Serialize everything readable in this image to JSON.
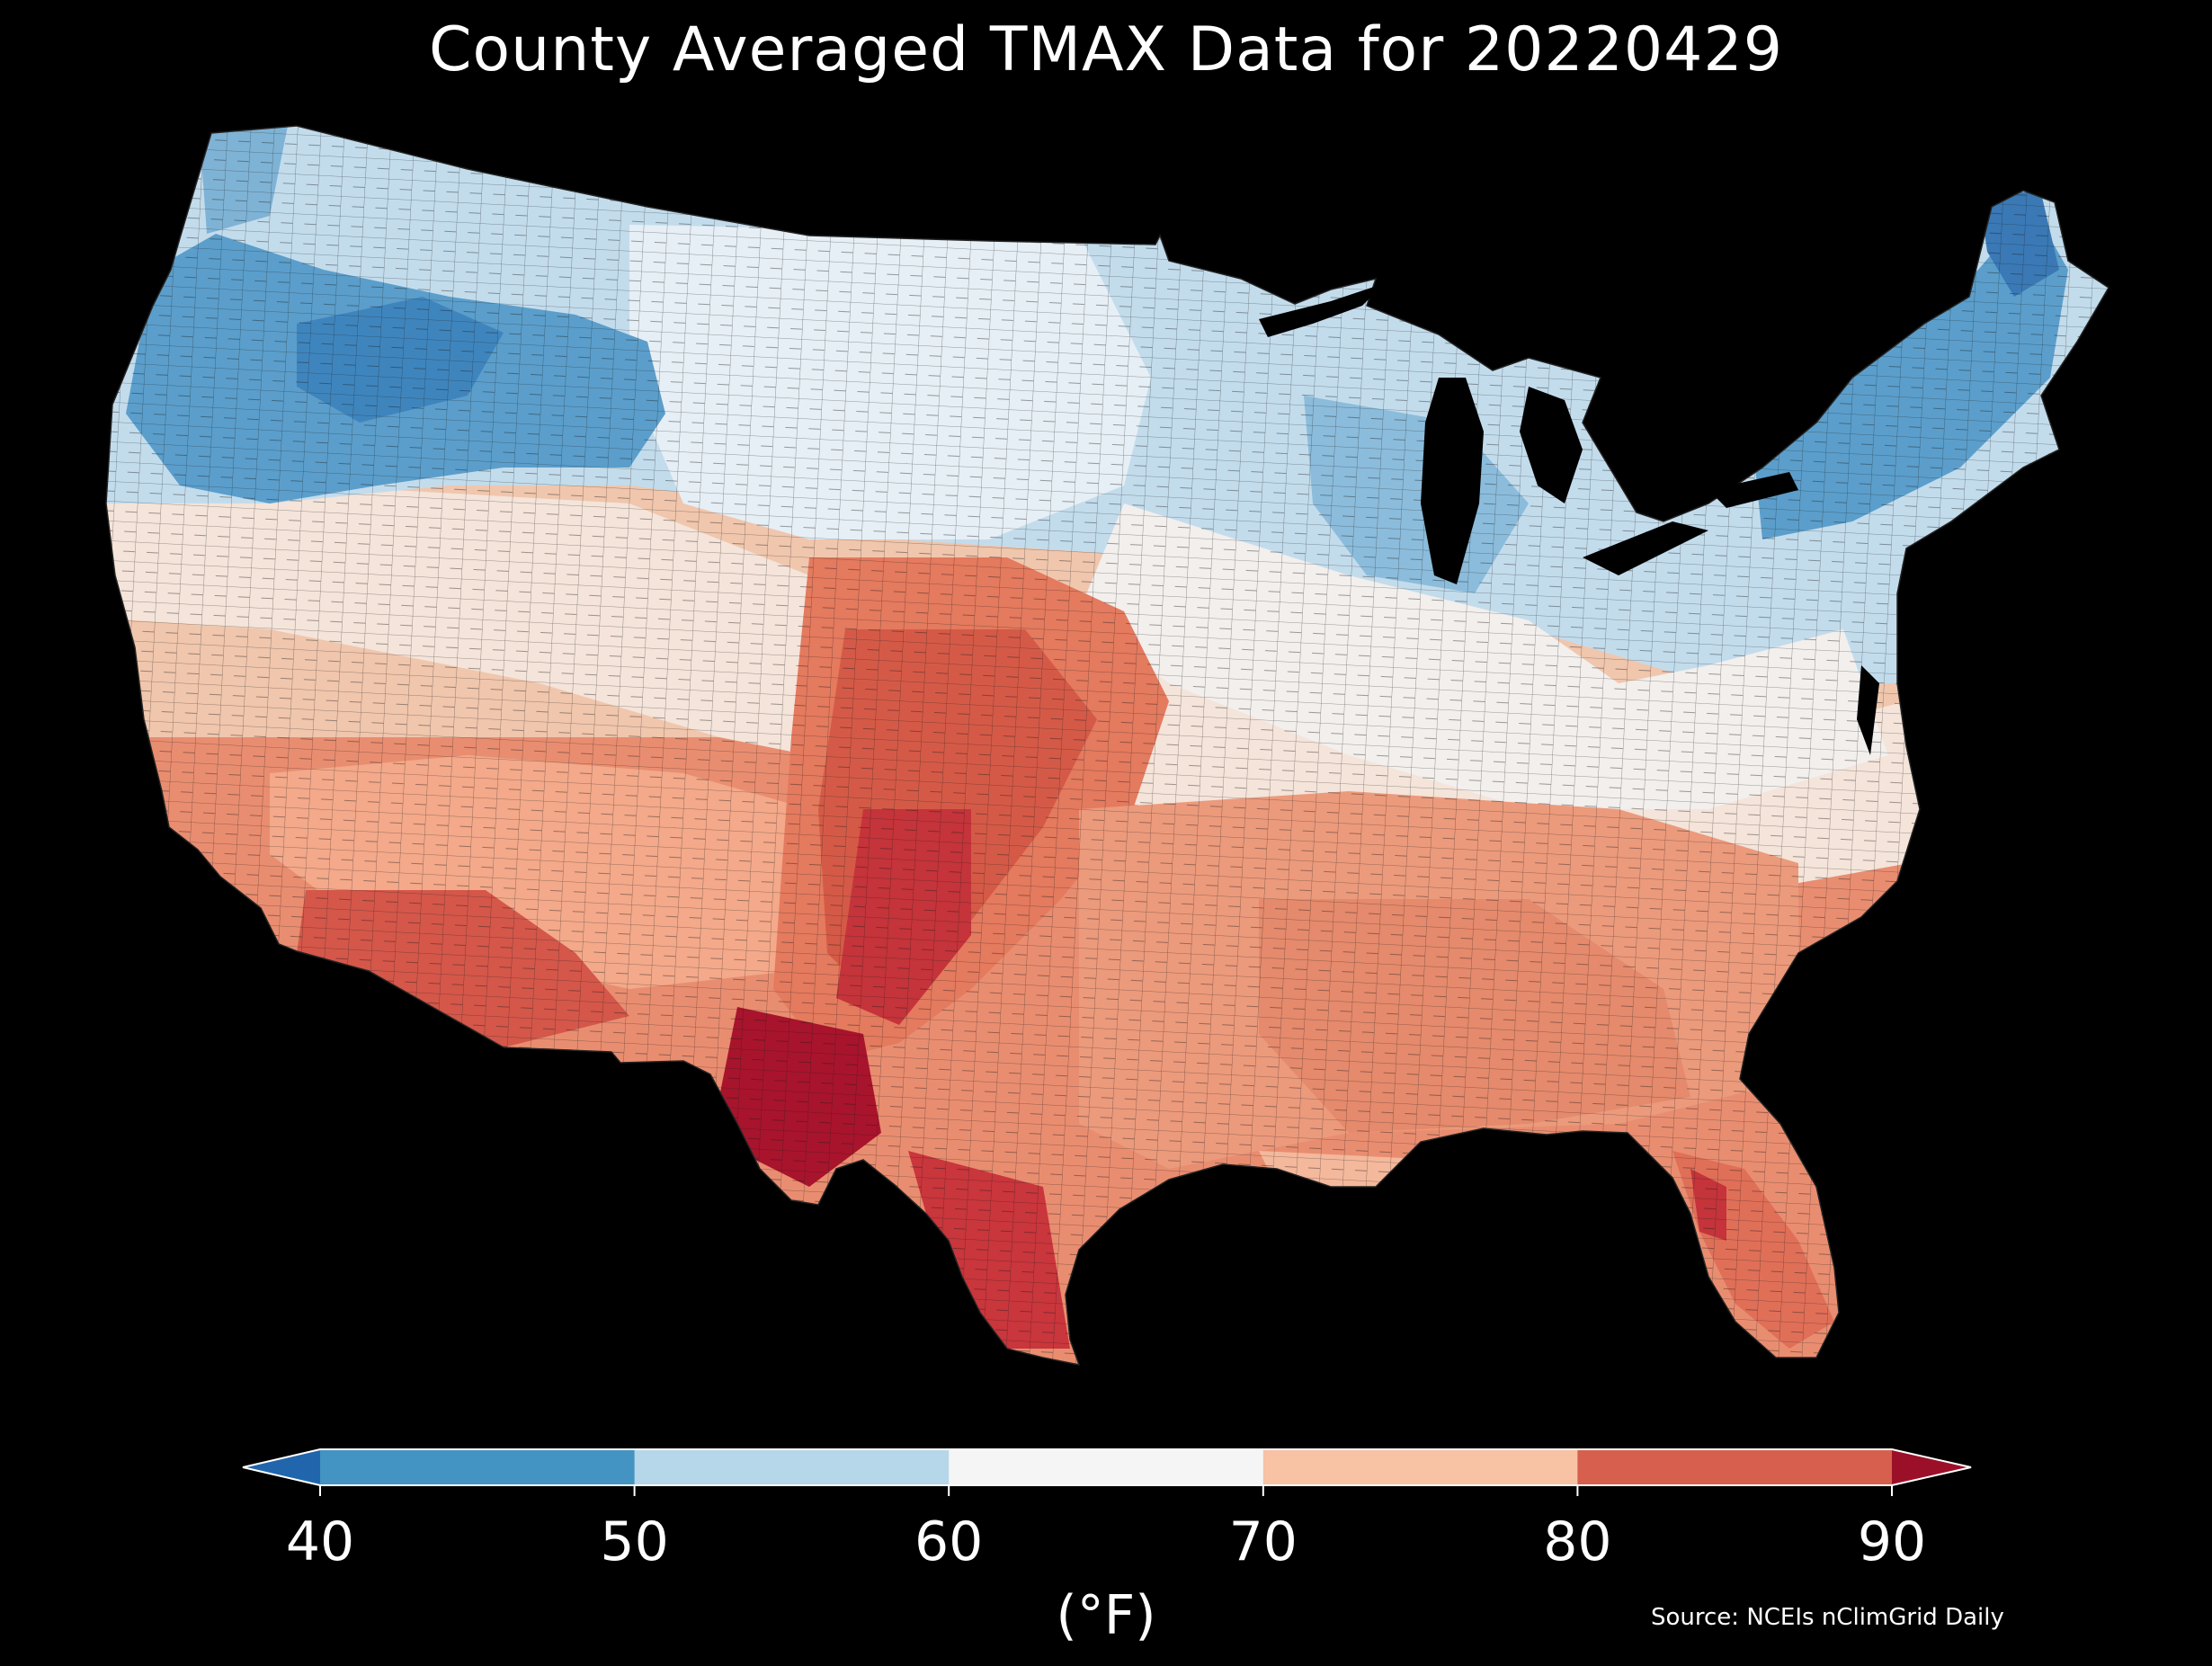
{
  "title": "County Averaged TMAX Data for 20220429",
  "colorbar": {
    "unit": "(°F)",
    "ticks": [
      "40",
      "50",
      "60",
      "70",
      "80",
      "90"
    ],
    "bins": [
      {
        "range": "<40",
        "color": "#2166ac"
      },
      {
        "range": "40-50",
        "color": "#4393c3"
      },
      {
        "range": "50-60",
        "color": "#b6d6e9"
      },
      {
        "range": "60-70",
        "color": "#f5f5f5"
      },
      {
        "range": "70-80",
        "color": "#f8c2a4"
      },
      {
        "range": "80-90",
        "color": "#d6604d"
      },
      {
        "range": ">90",
        "color": "#9b1028"
      }
    ]
  },
  "source": "Source: NCEIs nClimGrid Daily",
  "map": {
    "region": "Contiguous United States",
    "variable": "TMAX",
    "unit": "°F",
    "pattern": {
      "coolest": "Northern Rockies, Pacific Northwest, northern New England (40s-50s °F)",
      "warmest": "West Texas / Rio Grande valley and southern Arizona (near/above 90 °F)"
    }
  }
}
